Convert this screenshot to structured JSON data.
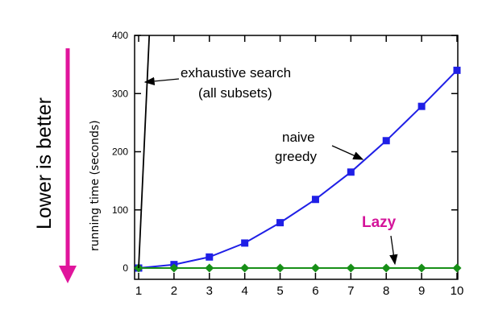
{
  "colors": {
    "naive": "#1f1fe6",
    "lazy": "#178f17",
    "exhaustive": "#000000",
    "arrow_side": "#e0159c",
    "lazy_label": "#d4149a"
  },
  "side_label": "Lower is better",
  "annotations": {
    "exhaustive_line1": "exhaustive search",
    "exhaustive_line2": "(all subsets)",
    "naive_line1": "naive",
    "naive_line2": "greedy",
    "lazy": "Lazy"
  },
  "chart_data": {
    "type": "line",
    "title": "",
    "xlabel": "",
    "ylabel": "running time (seconds)",
    "xlim": [
      1,
      10
    ],
    "ylim": [
      0,
      400
    ],
    "x_ticks": [
      "1",
      "2",
      "3",
      "4",
      "5",
      "6",
      "7",
      "8",
      "9",
      "10"
    ],
    "y_ticks": [
      "0",
      "100",
      "200",
      "300",
      "400"
    ],
    "series": [
      {
        "key": "naive",
        "x": [
          1,
          2,
          3,
          4,
          5,
          6,
          7,
          8,
          9,
          10
        ],
        "values": [
          0,
          6,
          19,
          43,
          78,
          118,
          165,
          219,
          278,
          340
        ],
        "marker": "square"
      },
      {
        "key": "lazy",
        "x": [
          1,
          2,
          3,
          4,
          5,
          6,
          7,
          8,
          9,
          10
        ],
        "values": [
          0,
          0,
          0,
          0,
          0,
          0,
          0,
          0,
          0,
          0
        ],
        "marker": "diamond"
      },
      {
        "key": "exhaustive",
        "x": [
          1,
          1.3
        ],
        "values": [
          0,
          400
        ],
        "marker": "none"
      }
    ],
    "grid": false
  }
}
